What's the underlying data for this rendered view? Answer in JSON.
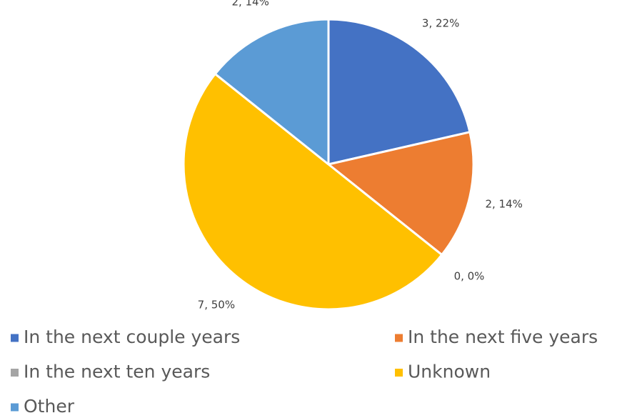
{
  "chart_data": {
    "type": "pie",
    "categories": [
      "In the next couple years",
      "In the next five years",
      "In the next ten years",
      "Unknown",
      "Other"
    ],
    "values": [
      3,
      2,
      0,
      7,
      2
    ],
    "value_labels": [
      "3, 22%",
      "2, 14%",
      "0, 0%",
      "7, 50%",
      "2, 14%"
    ],
    "colors": [
      "#4472c4",
      "#ed7d31",
      "#a5a5a5",
      "#ffc000",
      "#5b9bd5"
    ],
    "legend": "bottom"
  }
}
